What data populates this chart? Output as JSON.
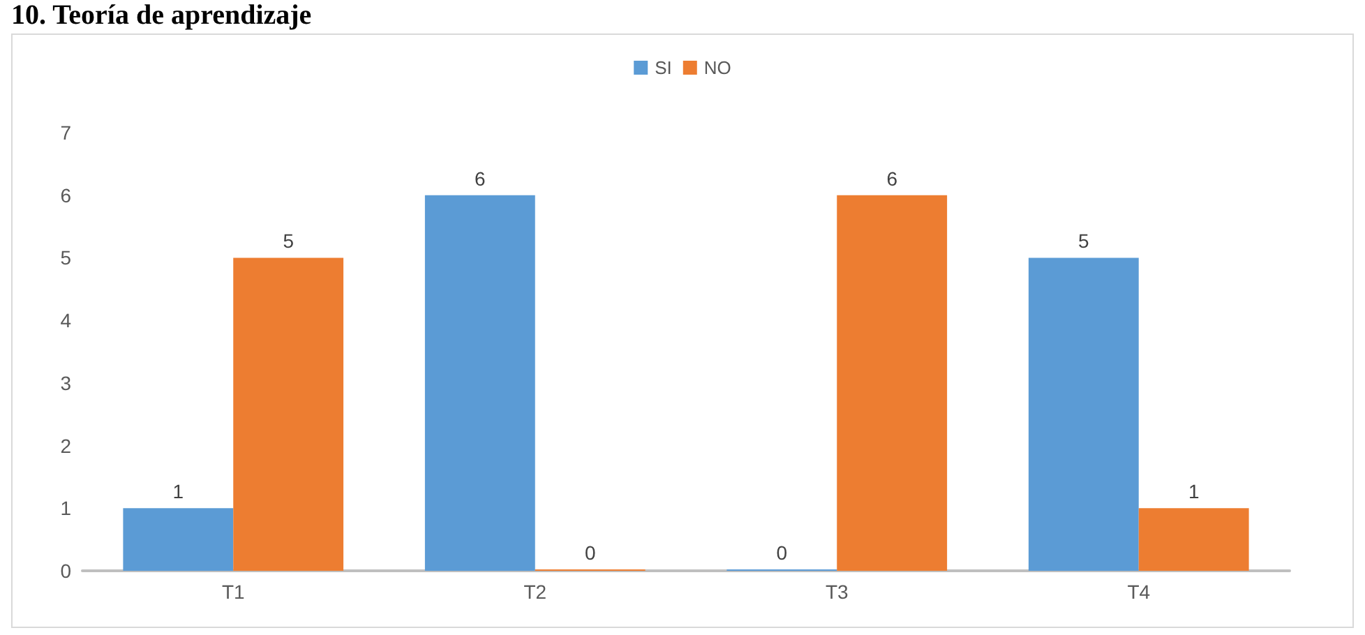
{
  "chart_data": {
    "type": "bar",
    "title": "10. Teoría de aprendizaje",
    "categories": [
      "T1",
      "T2",
      "T3",
      "T4"
    ],
    "series": [
      {
        "name": "SI",
        "color": "#5b9bd5",
        "values": [
          1,
          6,
          0,
          5
        ]
      },
      {
        "name": "NO",
        "color": "#ed7d31",
        "values": [
          5,
          0,
          6,
          1
        ]
      }
    ],
    "ylim": [
      0,
      7
    ],
    "yticks": [
      0,
      1,
      2,
      3,
      4,
      5,
      6,
      7
    ],
    "grid": false,
    "legend": "top",
    "data_labels": true
  }
}
